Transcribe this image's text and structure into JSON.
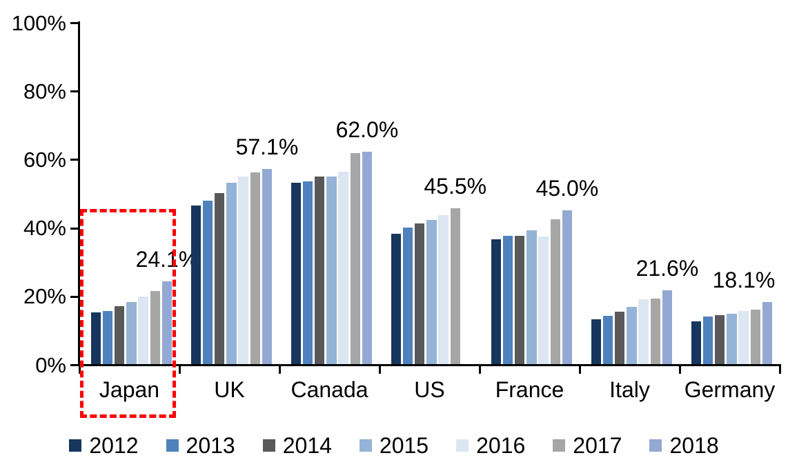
{
  "chart_data": {
    "type": "bar",
    "title": "",
    "xlabel": "",
    "ylabel": "",
    "categories": [
      "Japan",
      "UK",
      "Canada",
      "US",
      "France",
      "Italy",
      "Germany"
    ],
    "series": [
      {
        "name": "2012",
        "color": "#17365D",
        "values": [
          15.1,
          46.4,
          53.0,
          38.2,
          36.5,
          13.1,
          12.5
        ]
      },
      {
        "name": "2013",
        "color": "#4F81BD",
        "values": [
          15.5,
          47.8,
          53.5,
          40.0,
          37.5,
          14.2,
          14.0
        ]
      },
      {
        "name": "2014",
        "color": "#595959",
        "values": [
          16.9,
          50.1,
          54.9,
          41.2,
          37.5,
          15.3,
          14.4
        ]
      },
      {
        "name": "2015",
        "color": "#95B3D7",
        "values": [
          18.2,
          53.1,
          54.8,
          42.2,
          39.2,
          16.8,
          14.8
        ]
      },
      {
        "name": "2016",
        "color": "#DCE6F2",
        "values": [
          19.8,
          54.8,
          56.2,
          43.6,
          37.2,
          18.9,
          15.5
        ]
      },
      {
        "name": "2017",
        "color": "#A6A6A6",
        "values": [
          21.3,
          56.1,
          61.7,
          45.5,
          42.4,
          19.2,
          15.9
        ]
      },
      {
        "name": "2018",
        "color": "#94A8D4",
        "values": [
          24.1,
          57.1,
          62.0,
          null,
          45.0,
          21.6,
          18.1
        ]
      }
    ],
    "annotations": [
      {
        "category": "Japan",
        "label": "24.1%"
      },
      {
        "category": "UK",
        "label": "57.1%"
      },
      {
        "category": "Canada",
        "label": "62.0%"
      },
      {
        "category": "US",
        "label": "45.5%"
      },
      {
        "category": "France",
        "label": "45.0%"
      },
      {
        "category": "Italy",
        "label": "21.6%"
      },
      {
        "category": "Germany",
        "label": "18.1%"
      }
    ],
    "y_axis": {
      "min": 0,
      "max": 100,
      "tick_step": 20,
      "tick_labels": [
        "0%",
        "20%",
        "40%",
        "60%",
        "80%",
        "100%"
      ]
    },
    "grid": false,
    "legend_position": "bottom",
    "highlight_box": {
      "category": "Japan",
      "style": "dashed",
      "color": "#FF0000"
    }
  }
}
